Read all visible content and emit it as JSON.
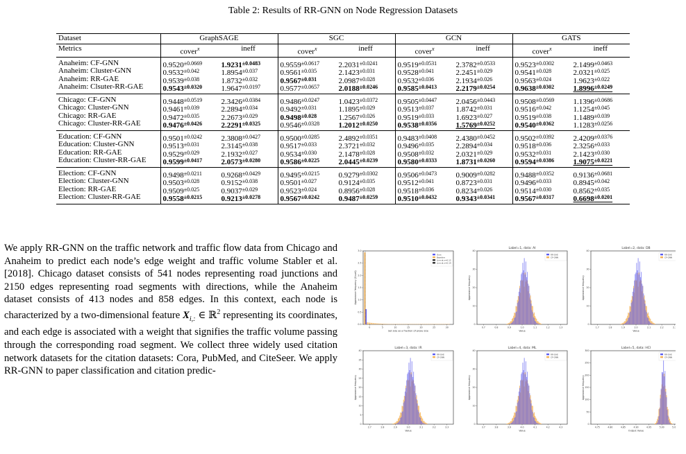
{
  "caption": "Table 2: Results of RR-GNN on Node Regression Datasets",
  "table": {
    "col_dataset": "Dataset",
    "col_metrics": "Metrics",
    "models": [
      "GraphSAGE",
      "SGC",
      "GCN",
      "GATS"
    ],
    "metric_cover": "cover",
    "metric_cover_sup": "x",
    "metric_ineff": "ineff",
    "groups": [
      {
        "rows": [
          {
            "name": "Anaheim: CF-GNN",
            "cells": [
              [
                "0.9520",
                "0.0669",
                ""
              ],
              [
                "1.9231",
                "0.0483",
                "b"
              ],
              [
                "0.9559",
                "0.0617",
                ""
              ],
              [
                "2.2031",
                "0.0241",
                ""
              ],
              [
                "0.9519",
                "0.0531",
                ""
              ],
              [
                "2.3782",
                "0.0533",
                ""
              ],
              [
                "0.9523",
                "0.0302",
                ""
              ],
              [
                "2.1499",
                "0.0463",
                ""
              ]
            ]
          },
          {
            "name": "Anaheim: Cluster-GNN",
            "cells": [
              [
                "0.9532",
                "0.042",
                ""
              ],
              [
                "1.8954",
                "0.037",
                ""
              ],
              [
                "0.9561",
                "0.035",
                ""
              ],
              [
                "2.1423",
                "0.031",
                ""
              ],
              [
                "0.9528",
                "0.041",
                ""
              ],
              [
                "2.2451",
                "0.029",
                ""
              ],
              [
                "0.9541",
                "0.028",
                ""
              ],
              [
                "2.0321",
                "0.025",
                ""
              ]
            ]
          },
          {
            "name": "Anaheim: RR-GAE",
            "cells": [
              [
                "0.9539",
                "0.038",
                ""
              ],
              [
                "1.8732",
                "0.032",
                ""
              ],
              [
                "0.9567",
                "0.031",
                "b"
              ],
              [
                "2.0987",
                "0.028",
                ""
              ],
              [
                "0.9532",
                "0.036",
                ""
              ],
              [
                "2.1934",
                "0.026",
                ""
              ],
              [
                "0.9563",
                "0.024",
                ""
              ],
              [
                "1.9623",
                "0.022",
                ""
              ]
            ]
          },
          {
            "name": "Anaheim: Clsuter-RR-GAE",
            "cells": [
              [
                "0.9543",
                "0.0320",
                "b"
              ],
              [
                "1.9647",
                "0.0197",
                ""
              ],
              [
                "0.9577",
                "0.0657",
                ""
              ],
              [
                "2.0188",
                "0.0246",
                "b"
              ],
              [
                "0.9585",
                "0.0413",
                "b"
              ],
              [
                "2.2179",
                "0.0254",
                "b"
              ],
              [
                "0.9638",
                "0.0302",
                "b"
              ],
              [
                "1.8996",
                "0.0249",
                "bu"
              ]
            ]
          }
        ]
      },
      {
        "rows": [
          {
            "name": "Chicago: CF-GNN",
            "cells": [
              [
                "0.9448",
                "0.0519",
                ""
              ],
              [
                "2.3426",
                "0.0384",
                ""
              ],
              [
                "0.9486",
                "0.0247",
                ""
              ],
              [
                "1.0423",
                "0.0372",
                ""
              ],
              [
                "0.9505",
                "0.0447",
                ""
              ],
              [
                "2.0456",
                "0.0443",
                ""
              ],
              [
                "0.9508",
                "0.0569",
                ""
              ],
              [
                "1.1396",
                "0.0686",
                ""
              ]
            ]
          },
          {
            "name": "Chicago: Cluster-GNN",
            "cells": [
              [
                "0.9461",
                "0.039",
                ""
              ],
              [
                "2.2894",
                "0.034",
                ""
              ],
              [
                "0.9492",
                "0.031",
                ""
              ],
              [
                "1.1895",
                "0.029",
                ""
              ],
              [
                "0.9513",
                "0.037",
                ""
              ],
              [
                "1.8742",
                "0.031",
                ""
              ],
              [
                "0.9516",
                "0.042",
                ""
              ],
              [
                "1.1254",
                "0.045",
                ""
              ]
            ]
          },
          {
            "name": "Chicago: RR-GAE",
            "cells": [
              [
                "0.9472",
                "0.035",
                ""
              ],
              [
                "2.2673",
                "0.029",
                ""
              ],
              [
                "0.9498",
                "0.028",
                "b"
              ],
              [
                "1.2567",
                "0.026",
                ""
              ],
              [
                "0.9519",
                "0.033",
                ""
              ],
              [
                "1.6923",
                "0.027",
                ""
              ],
              [
                "0.9519",
                "0.038",
                ""
              ],
              [
                "1.1489",
                "0.039",
                ""
              ]
            ]
          },
          {
            "name": "Chicago: Cluster-RR-GAE",
            "cells": [
              [
                "0.9476",
                "0.0426",
                "b"
              ],
              [
                "2.2291",
                "0.0325",
                "b"
              ],
              [
                "0.9546",
                "0.0328",
                ""
              ],
              [
                "1.2012",
                "0.0250",
                "b"
              ],
              [
                "0.9538",
                "0.0356",
                "b"
              ],
              [
                "1.5769",
                "0.0252",
                "bu"
              ],
              [
                "0.9540",
                "0.0362",
                "b"
              ],
              [
                "1.1283",
                "0.0256",
                ""
              ]
            ]
          }
        ]
      },
      {
        "rows": [
          {
            "name": "Education: CF-GNN",
            "cells": [
              [
                "0.9501",
                "0.0242",
                ""
              ],
              [
                "2.3808",
                "0.0427",
                ""
              ],
              [
                "0.9500",
                "0.0285",
                ""
              ],
              [
                "2.4892",
                "0.0351",
                ""
              ],
              [
                "0.9483",
                "0.0408",
                ""
              ],
              [
                "2.4380",
                "0.0452",
                ""
              ],
              [
                "0.9502",
                "0.0392",
                ""
              ],
              [
                "2.4209",
                "0.0376",
                ""
              ]
            ]
          },
          {
            "name": "Education: Cluster-GNN",
            "cells": [
              [
                "0.9513",
                "0.031",
                ""
              ],
              [
                "2.3145",
                "0.038",
                ""
              ],
              [
                "0.9517",
                "0.033",
                ""
              ],
              [
                "2.3721",
                "0.032",
                ""
              ],
              [
                "0.9496",
                "0.035",
                ""
              ],
              [
                "2.2894",
                "0.034",
                ""
              ],
              [
                "0.9518",
                "0.036",
                ""
              ],
              [
                "2.3256",
                "0.033",
                ""
              ]
            ]
          },
          {
            "name": "Education: RR-GAE",
            "cells": [
              [
                "0.9529",
                "0.029",
                ""
              ],
              [
                "2.1932",
                "0.027",
                ""
              ],
              [
                "0.9534",
                "0.030",
                ""
              ],
              [
                "2.1478",
                "0.028",
                ""
              ],
              [
                "0.9508",
                "0.032",
                ""
              ],
              [
                "2.0321",
                "0.029",
                ""
              ],
              [
                "0.9532",
                "0.031",
                ""
              ],
              [
                "2.1423",
                "0.030",
                ""
              ]
            ]
          },
          {
            "name": "Education: Cluster-RR-GAE",
            "cells": [
              [
                "0.9599",
                "0.0417",
                "b"
              ],
              [
                "2.0573",
                "0.0280",
                "b"
              ],
              [
                "0.9586",
                "0.0225",
                "b"
              ],
              [
                "2.0445",
                "0.0239",
                "b"
              ],
              [
                "0.9580",
                "0.0333",
                "b"
              ],
              [
                "1.8731",
                "0.0260",
                "b"
              ],
              [
                "0.9594",
                "0.0386",
                "b"
              ],
              [
                "1.9075",
                "0.0221",
                "bu"
              ]
            ]
          }
        ]
      },
      {
        "rows": [
          {
            "name": "Election: CF-GNN",
            "cells": [
              [
                "0.9498",
                "0.0211",
                ""
              ],
              [
                "0.9268",
                "0.0429",
                ""
              ],
              [
                "0.9495",
                "0.0215",
                ""
              ],
              [
                "0.9279",
                "0.0302",
                ""
              ],
              [
                "0.9506",
                "0.0473",
                ""
              ],
              [
                "0.9009",
                "0.0282",
                ""
              ],
              [
                "0.9488",
                "0.0352",
                ""
              ],
              [
                "0.9136",
                "0.0681",
                ""
              ]
            ]
          },
          {
            "name": "Election: Cluster-GNN",
            "cells": [
              [
                "0.9503",
                "0.028",
                ""
              ],
              [
                "0.9152",
                "0.038",
                ""
              ],
              [
                "0.9501",
                "0.027",
                ""
              ],
              [
                "0.9124",
                "0.035",
                ""
              ],
              [
                "0.9512",
                "0.041",
                ""
              ],
              [
                "0.8723",
                "0.031",
                ""
              ],
              [
                "0.9496",
                "0.033",
                ""
              ],
              [
                "0.8945",
                "0.042",
                ""
              ]
            ]
          },
          {
            "name": "Election: RR-GAE",
            "cells": [
              [
                "0.9509",
                "0.025",
                ""
              ],
              [
                "0.9037",
                "0.029",
                ""
              ],
              [
                "0.9523",
                "0.024",
                ""
              ],
              [
                "0.8956",
                "0.028",
                ""
              ],
              [
                "0.9518",
                "0.036",
                ""
              ],
              [
                "0.8234",
                "0.026",
                ""
              ],
              [
                "0.9514",
                "0.030",
                ""
              ],
              [
                "0.8562",
                "0.035",
                ""
              ]
            ]
          },
          {
            "name": "Election: Cluster-RR-GAE",
            "cells": [
              [
                "0.9558",
                "0.0215",
                "b"
              ],
              [
                "0.9213",
                "0.0278",
                "b"
              ],
              [
                "0.9567",
                "0.0242",
                "b"
              ],
              [
                "0.9487",
                "0.0259",
                "b"
              ],
              [
                "0.9510",
                "0.0432",
                "b"
              ],
              [
                "0.9343",
                "0.0341",
                "b"
              ],
              [
                "0.9567",
                "0.0317",
                "b"
              ],
              [
                "0.6698",
                "0.0201",
                "bu"
              ]
            ]
          }
        ]
      }
    ]
  },
  "paragraph": "We apply RR-GNN on the traffic network and traffic flow data from Chicago and Anaheim to predict each node’s edge weight and traffic volume Stabler et al. [2018]. Chicago dataset consists of 541 nodes representing road junctions and 2150 edges representing road segments with directions, while the Anaheim dataset consists of 413 nodes and 858 edges. In this context, each node is characterized by a two-dimensional feature",
  "paragraph_math": "X",
  "paragraph_math_sub": "i,:",
  "paragraph_math_rel": " ∈ ℝ",
  "paragraph_math_sup": "2",
  "paragraph_tail": " representing its coordinates, and each edge is associated with a weight that signifies the traffic volume passing through the corresponding road segment. We collect three widely used citation network datasets for the citation datasets: Cora, PubMed, and CiteSeer. We apply RR-GNN to paper classification and citation predic-",
  "figure": {
    "colors": {
      "blue": "#5b5bf0",
      "orange": "#f5b45a",
      "frame": "#222222"
    },
    "panels": [
      {
        "title": "",
        "legend": [
          "Ours",
          "Baseline",
          "Line at x=0.12",
          "Line at x=0.14"
        ],
        "xlabel": "Set size as a fraction of proxy size",
        "ylabel": "Appearance frequency (Count)",
        "xticks": [
          "0",
          "5",
          "10",
          "15",
          "20",
          "25",
          "30"
        ],
        "yticks": [
          "0.0",
          "0.5",
          "1.0",
          "1.5",
          "2.0",
          "2.5",
          "3.0"
        ]
      },
      {
        "title": "Label=1, data: AI",
        "legend": [
          "RR-GAE",
          "CF-GNN"
        ],
        "xlabel": "Value",
        "ylabel": "Appearance frequency",
        "xticks": [
          "0.7",
          "0.8",
          "0.9",
          "1.0",
          "1.1",
          "1.2",
          "1.3"
        ],
        "yticks": [
          "0",
          "10",
          "20",
          "30",
          "40"
        ]
      },
      {
        "title": "Label=2, data: DB",
        "legend": [
          "RR-GAE",
          "CF-GNN"
        ],
        "xlabel": "Value",
        "ylabel": "Appearance frequency",
        "xticks": [
          "1.7",
          "1.8",
          "1.9",
          "2.0",
          "2.1",
          "2.2",
          "2.3"
        ],
        "yticks": [
          "0",
          "10",
          "20",
          "30",
          "40"
        ]
      },
      {
        "title": "Label=3, data: IR",
        "legend": [
          "RR-GAE",
          "CF-GNN"
        ],
        "xlabel": "Value",
        "ylabel": "Appearance frequency",
        "xticks": [
          "2.7",
          "2.8",
          "2.9",
          "3.0",
          "3.1",
          "3.2",
          "3.3"
        ],
        "yticks": [
          "0",
          "5",
          "10",
          "15",
          "20",
          "25",
          "30",
          "35",
          "40"
        ]
      },
      {
        "title": "Label=4, data: ML",
        "legend": [
          "RR-GAE",
          "CF-GNN"
        ],
        "xlabel": "Value",
        "ylabel": "Appearance frequency",
        "xticks": [
          "3.7",
          "3.8",
          "3.9",
          "4.0",
          "4.1",
          "4.2",
          "4.3"
        ],
        "yticks": [
          "0",
          "10",
          "20",
          "30",
          "40"
        ]
      },
      {
        "title": "Label=5, data: HCI",
        "legend": [
          "RR-GAE",
          "CF-GNN"
        ],
        "xlabel": "Output Value",
        "ylabel": "Appearance frequency",
        "xticks": [
          "4.75",
          "4.80",
          "4.85",
          "4.90",
          "4.95",
          "5.00",
          "5.05"
        ],
        "yticks": [
          "0",
          "50",
          "100",
          "150",
          "200",
          "250",
          "300"
        ]
      }
    ]
  }
}
